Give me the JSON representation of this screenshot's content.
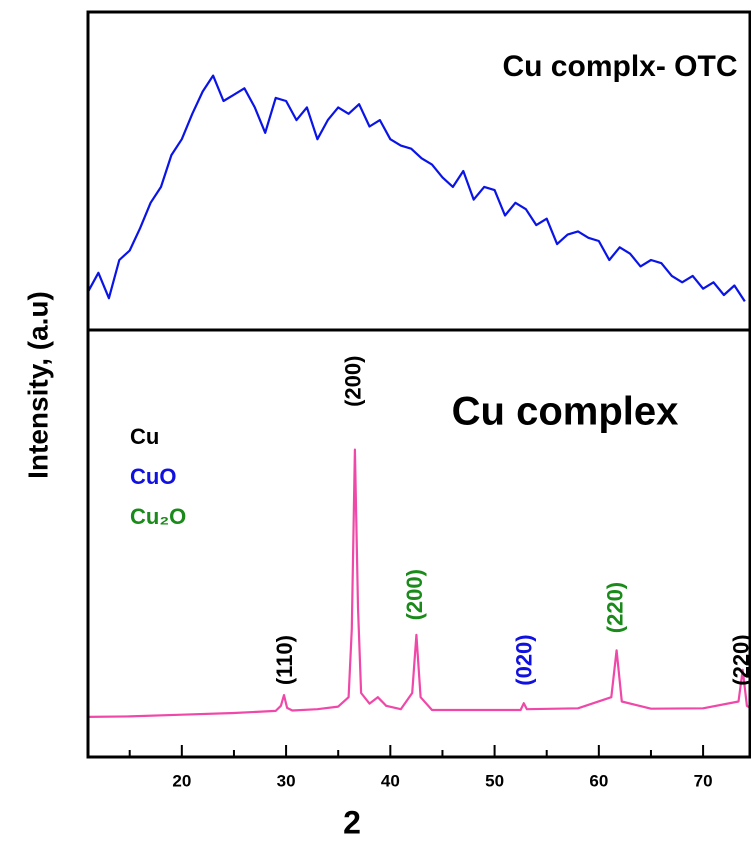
{
  "chart_data": [
    {
      "type": "line",
      "title": "Cu complx- OTC",
      "ylabel": "Intensity, (a.u)",
      "color": "#0a14e6",
      "xlim": [
        11,
        74.5
      ],
      "ylim": [
        0,
        100
      ],
      "x": [
        11,
        12,
        13,
        14,
        15,
        16,
        17,
        18,
        19,
        20,
        21,
        22,
        23,
        24,
        25,
        26,
        27,
        28,
        29,
        30,
        31,
        32,
        33,
        34,
        35,
        36,
        37,
        38,
        39,
        40,
        41,
        42,
        43,
        44,
        45,
        46,
        47,
        48,
        49,
        50,
        51,
        52,
        53,
        54,
        55,
        56,
        57,
        58,
        59,
        60,
        61,
        62,
        63,
        64,
        65,
        66,
        67,
        68,
        69,
        70,
        71,
        72,
        73,
        74
      ],
      "values": [
        12,
        18,
        10,
        22,
        25,
        32,
        40,
        45,
        55,
        60,
        68,
        75,
        80,
        72,
        74,
        76,
        70,
        62,
        73,
        72,
        66,
        70,
        60,
        66,
        70,
        68,
        71,
        64,
        66,
        60,
        58,
        57,
        54,
        52,
        48,
        45,
        50,
        41,
        45,
        44,
        36,
        40,
        38,
        33,
        35,
        27,
        30,
        31,
        29,
        28,
        22,
        26,
        24,
        20,
        22,
        21,
        17,
        15,
        17,
        13,
        15,
        11,
        14,
        9
      ]
    },
    {
      "type": "line",
      "title": "Cu complex",
      "xlabel": "2",
      "color": "#f048a8",
      "xlim": [
        11,
        74.5
      ],
      "ylim": [
        0,
        100
      ],
      "xticks": [
        20,
        30,
        40,
        50,
        60,
        70
      ],
      "xminorticks": [
        15,
        25,
        35,
        45,
        55,
        65
      ],
      "x": [
        11,
        15,
        20,
        25,
        29,
        29.5,
        29.8,
        30.1,
        30.6,
        33,
        35,
        36,
        36.3,
        36.6,
        36.9,
        37.2,
        38,
        38.8,
        39.6,
        41,
        42.1,
        42.5,
        42.9,
        44,
        48,
        52.5,
        52.8,
        53.1,
        58,
        61.2,
        61.7,
        62.2,
        65,
        70,
        73.4,
        73.8,
        74.2,
        74.5
      ],
      "values": [
        9.4,
        9.5,
        9.9,
        10.3,
        10.8,
        12,
        14.5,
        11.5,
        10.9,
        11.2,
        11.8,
        14,
        30,
        72,
        35,
        15,
        12.5,
        14,
        12,
        11.2,
        15,
        28.6,
        14,
        11,
        11,
        11,
        12.6,
        11.2,
        11.4,
        14,
        25,
        13,
        11.3,
        11.4,
        13,
        20.4,
        12,
        11.5
      ],
      "phases": [
        {
          "text": "Cu",
          "color": "#000000"
        },
        {
          "text": "CuO",
          "color": "#1010e0"
        },
        {
          "text": "Cu₂O",
          "color": "#1a8a1a"
        }
      ],
      "annotations": [
        {
          "text": "(110)",
          "x": 30,
          "y": 22.7,
          "color": "#000000"
        },
        {
          "text": "(200)",
          "x": 36.6,
          "y": 88,
          "color": "#000000"
        },
        {
          "text": "(200)",
          "x": 42.5,
          "y": 38,
          "color": "#1a8a1a"
        },
        {
          "text": "(020)",
          "x": 53,
          "y": 22.7,
          "color": "#1010e0"
        },
        {
          "text": "(220)",
          "x": 61.7,
          "y": 35,
          "color": "#1a8a1a"
        },
        {
          "text": "(220)",
          "x": 73.8,
          "y": 22.7,
          "color": "#000000"
        }
      ]
    }
  ]
}
